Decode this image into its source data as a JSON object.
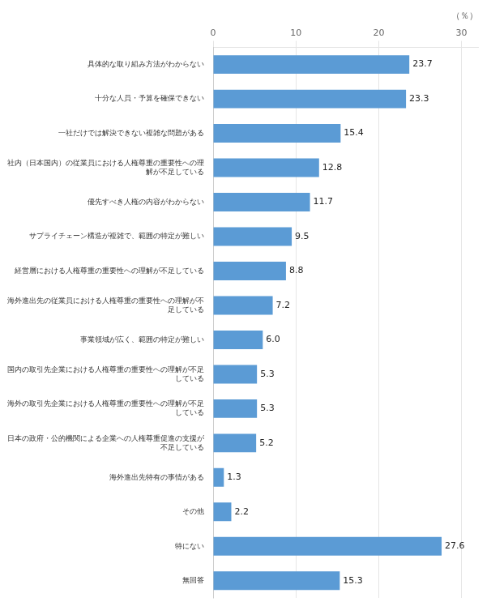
{
  "chart_data": {
    "type": "bar",
    "orientation": "horizontal",
    "xlabel": "（％）",
    "categories": [
      "具体的な取り組み方法がわからない",
      "十分な人員・予算を確保できない",
      "一社だけでは解決できない複雑な問題がある",
      "社内（日本国内）の従業員における人権尊重の重要性への理\n解が不足している",
      "優先すべき人権の内容がわからない",
      "サプライチェーン構造が複雑で、範囲の特定が難しい",
      "経営層における人権尊重の重要性への理解が不足している",
      "海外進出先の従業員における人権尊重の重要性への理解が不\n足している",
      "事業領域が広く、範囲の特定が難しい",
      "国内の取引先企業における人権尊重の重要性への理解が不足\nしている",
      "海外の取引先企業における人権尊重の重要性への理解が不足\nしている",
      "日本の政府・公的機関による企業への人権尊重促進の支援が\n不足している",
      "海外進出先特有の事情がある",
      "その他",
      "特にない",
      "無回答"
    ],
    "values": [
      23.7,
      23.3,
      15.4,
      12.8,
      11.7,
      9.5,
      8.8,
      7.2,
      6.0,
      5.3,
      5.3,
      5.2,
      1.3,
      2.2,
      27.6,
      15.3
    ],
    "value_labels": [
      "23.7",
      "23.3",
      "15.4",
      "12.8",
      "11.7",
      "9.5",
      "8.8",
      "7.2",
      "6.0",
      "5.3",
      "5.3",
      "5.2",
      "1.3",
      "2.2",
      "27.6",
      "15.3"
    ],
    "data_labels": true,
    "color": "#5B9BD5",
    "xlim": [
      0,
      32
    ],
    "xticks": [
      0,
      10,
      20,
      30
    ],
    "grid": true
  }
}
